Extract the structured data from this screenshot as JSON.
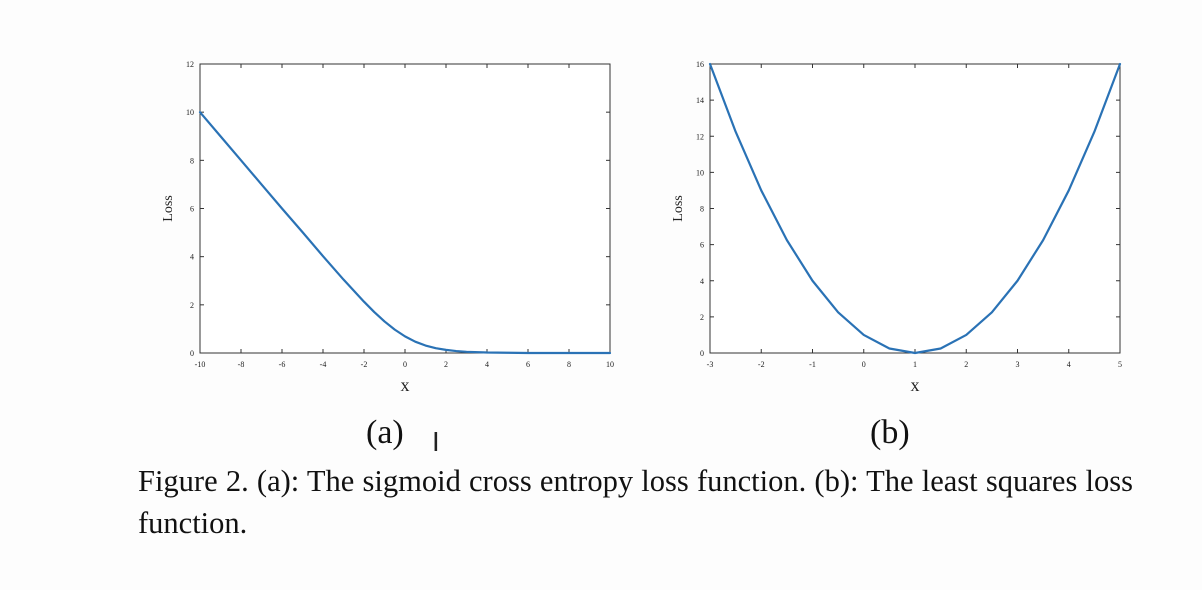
{
  "chart_data": [
    {
      "type": "line",
      "label": "(a)",
      "xlabel": "x",
      "ylabel": "Loss",
      "xlim": [
        -10,
        10
      ],
      "ylim": [
        0,
        12
      ],
      "xticks": [
        "-10",
        "-8",
        "-6",
        "-4",
        "-2",
        "0",
        "2",
        "4",
        "6",
        "8",
        "10"
      ],
      "yticks": [
        "0",
        "2",
        "4",
        "6",
        "8",
        "10",
        "12"
      ],
      "color": "#2a72b5",
      "series": [
        {
          "x": [
            -10,
            -9,
            -8,
            -7,
            -6,
            -5,
            -4,
            -3,
            -2,
            -1.5,
            -1,
            -0.5,
            0,
            0.5,
            1,
            1.5,
            2,
            2.5,
            3,
            4,
            5,
            6,
            7,
            8,
            9,
            10
          ],
          "values": [
            10.0,
            9.0,
            8.0,
            7.0,
            6.0,
            5.02,
            4.02,
            3.05,
            2.13,
            1.7,
            1.31,
            0.97,
            0.69,
            0.47,
            0.31,
            0.2,
            0.13,
            0.08,
            0.05,
            0.02,
            0.01,
            0.0,
            0.0,
            0.0,
            0.0,
            0.0
          ]
        }
      ]
    },
    {
      "type": "line",
      "label": "(b)",
      "xlabel": "x",
      "ylabel": "Loss",
      "xlim": [
        -3,
        5
      ],
      "ylim": [
        0,
        16
      ],
      "xticks": [
        "-3",
        "-2",
        "-1",
        "0",
        "1",
        "2",
        "3",
        "4",
        "5"
      ],
      "yticks": [
        "0",
        "2",
        "4",
        "6",
        "8",
        "10",
        "12",
        "14",
        "16"
      ],
      "color": "#2a72b5",
      "series": [
        {
          "x": [
            -3,
            -2.5,
            -2,
            -1.5,
            -1,
            -0.5,
            0,
            0.5,
            1,
            1.5,
            2,
            2.5,
            3,
            3.5,
            4,
            4.5,
            5
          ],
          "values": [
            16,
            12.25,
            9,
            6.25,
            4,
            2.25,
            1,
            0.25,
            0,
            0.25,
            1,
            2.25,
            4,
            6.25,
            9,
            12.25,
            16
          ]
        }
      ]
    }
  ],
  "caption": "Figure 2. (a): The sigmoid cross entropy loss function. (b): The least squares loss function.",
  "cursor_glyph": "I"
}
